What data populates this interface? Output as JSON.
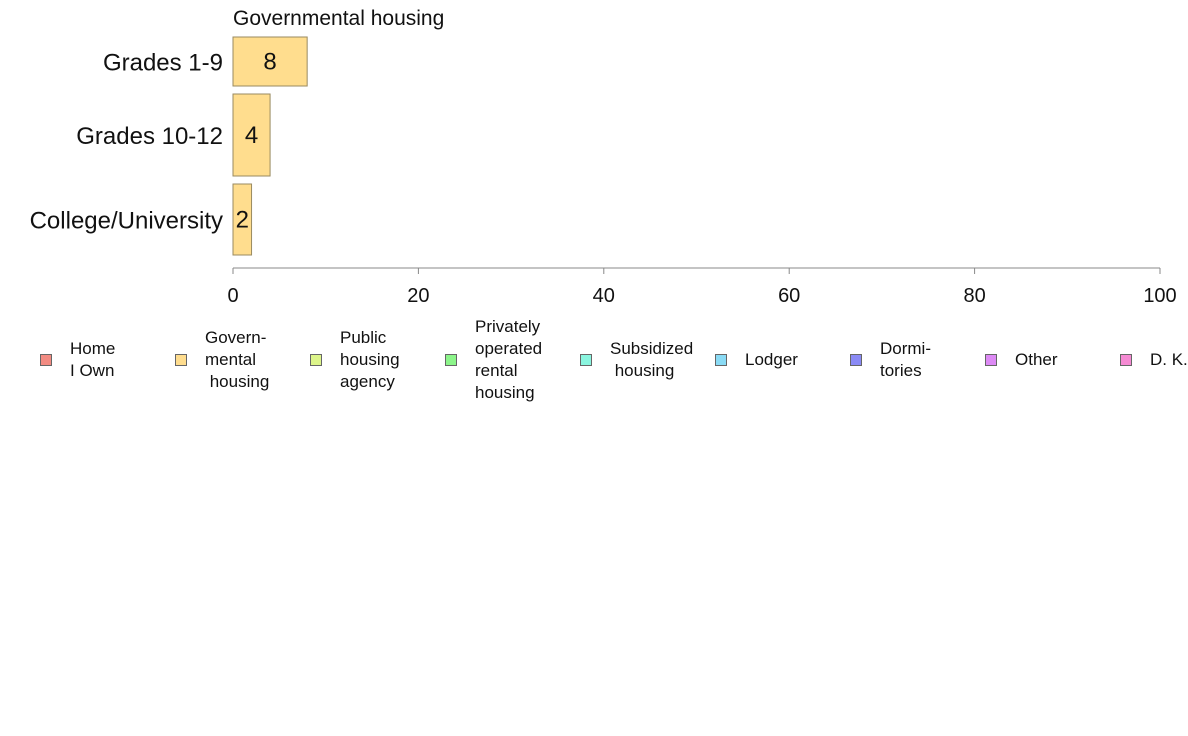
{
  "chart_data": {
    "type": "bar",
    "orientation": "horizontal",
    "title": "Governmental housing",
    "categories": [
      "Grades 1-9",
      "Grades 10-12",
      "College/University"
    ],
    "series": [
      {
        "name": "Govern-\nmental\n housing",
        "values": [
          8,
          4,
          2
        ]
      }
    ],
    "data_labels": [
      "8",
      "4",
      "2"
    ],
    "xlim": [
      0,
      100
    ],
    "xticks": [
      0,
      20,
      40,
      60,
      80,
      100
    ],
    "xlabel": "",
    "ylabel": "",
    "grid": false,
    "legend_position": "bottom",
    "bar_color": "#FFDD8E"
  },
  "legend": [
    {
      "label": "Home\nI Own",
      "color": "#F28B82"
    },
    {
      "label": "Govern-\nmental\n housing",
      "color": "#FFDD8E"
    },
    {
      "label": "Public\nhousing\nagency",
      "color": "#DDF58A"
    },
    {
      "label": "Privately\noperated\nrental\nhousing",
      "color": "#8CF58A"
    },
    {
      "label": "Subsidized\n housing",
      "color": "#8AF5DF"
    },
    {
      "label": "Lodger",
      "color": "#8ADBF5"
    },
    {
      "label": "Dormi-\ntories",
      "color": "#8A8AF5"
    },
    {
      "label": "Other",
      "color": "#DD8AF5"
    },
    {
      "label": "D. K.",
      "color": "#F58AD3"
    }
  ]
}
